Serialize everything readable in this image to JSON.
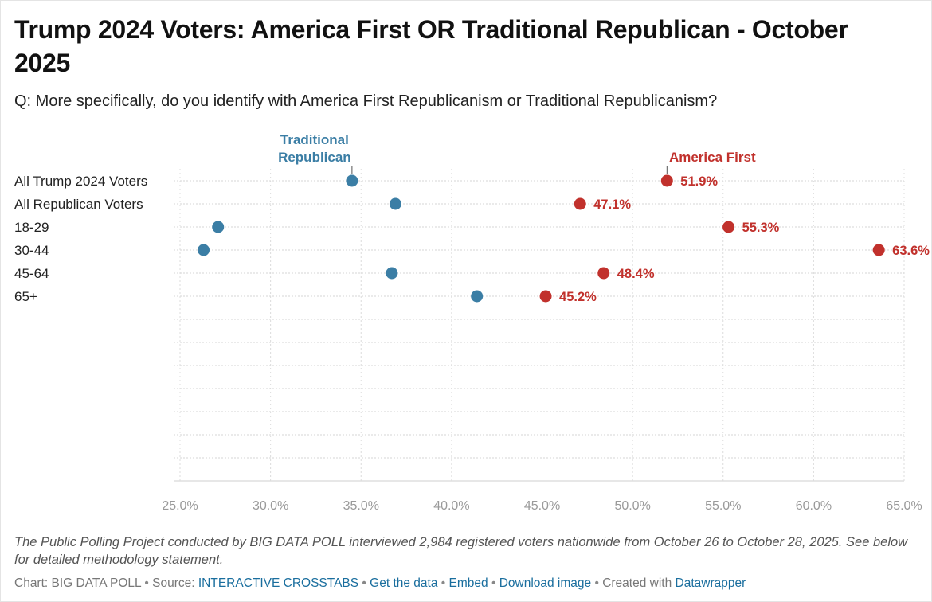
{
  "title": "Trump 2024 Voters: America First OR Traditional Republican - October 2025",
  "subtitle": "Q: More specifically, do you identify with America First Republicanism or Traditional Republicanism?",
  "chart_data": {
    "type": "dumbbell",
    "title": "Trump 2024 Voters: America First OR Traditional Republican - October 2025",
    "xlabel": "",
    "ylabel": "",
    "xlim": [
      25,
      65
    ],
    "x_ticks": [
      "25.0%",
      "30.0%",
      "35.0%",
      "40.0%",
      "45.0%",
      "50.0%",
      "55.0%",
      "60.0%",
      "65.0%"
    ],
    "x_tick_values": [
      25,
      30,
      35,
      40,
      45,
      50,
      55,
      60,
      65
    ],
    "categories": [
      "All Trump 2024 Voters",
      "All Republican Voters",
      "18-29",
      "30-44",
      "45-64",
      "65+"
    ],
    "series": [
      {
        "name": "Traditional Republican",
        "color": "#3b7ea5",
        "values": [
          34.5,
          36.9,
          27.1,
          26.3,
          36.7,
          41.4
        ]
      },
      {
        "name": "America First",
        "color": "#c1312c",
        "values": [
          51.9,
          47.1,
          55.3,
          63.6,
          48.4,
          45.2
        ]
      }
    ],
    "data_labels": [
      "51.9%",
      "47.1%",
      "55.3%",
      "63.6%",
      "48.4%",
      "45.2%"
    ],
    "legend_labels": {
      "traditional_line1": "Traditional",
      "traditional_line2": "Republican",
      "america_first": "America First"
    },
    "grid": true
  },
  "notes": "The Public Polling Project conducted by BIG DATA POLL interviewed 2,984 registered voters nationwide from October 26 to October 28, 2025. See below for detailed methodology statement.",
  "footer": {
    "chart_label": "Chart: BIG DATA POLL",
    "source_label": "Source:",
    "crosstabs_link": "INTERACTIVE CROSSTABS",
    "get_data_link": "Get the data",
    "embed_link": "Embed",
    "download_link": "Download image",
    "created_label": "Created with",
    "datawrapper_link": "Datawrapper"
  }
}
